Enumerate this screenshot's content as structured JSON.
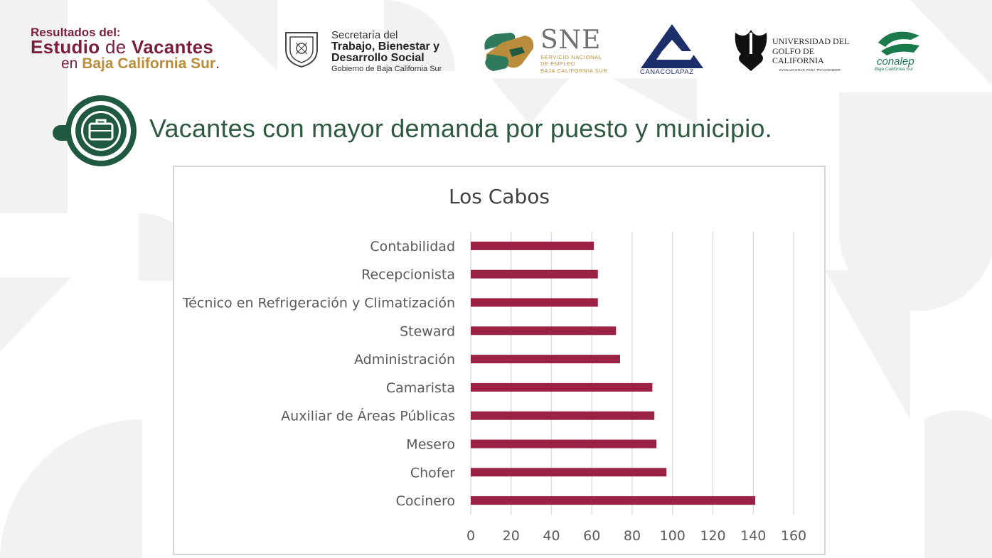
{
  "header": {
    "resultados": {
      "line1": "Resultados del:",
      "line2_a": "Estudio",
      "line2_b": "de",
      "line2_c": "Vacantes",
      "line3_a": "en",
      "line3_b": "Baja California Sur",
      "line3_c": "."
    },
    "stps": {
      "line1": "Secretaría del",
      "line2": "Trabajo, Bienestar y",
      "line3": "Desarrollo Social",
      "line4": "Gobierno de Baja California Sur"
    },
    "sne": {
      "title": "SNE",
      "line1": "SERVICIO NACIONAL",
      "line2": "DE EMPLEO",
      "line3": "BAJA CALIFORNIA SUR"
    },
    "canaco": "CANACOLAPAZ",
    "ugc": {
      "line1": "UNIVERSIDAD DEL",
      "line2": "GOLFO DE",
      "line3": "CALIFORNIA",
      "line4": "EVOLUCIONAR PARA TRASCENDER",
      "initials": "UGC"
    },
    "conalep": {
      "name": "conalep",
      "sub": "Baja California Sur"
    }
  },
  "heading": "Vacantes con mayor demanda por puesto y municipio.",
  "colors": {
    "bar": "#9b2245",
    "heading": "#2f5a41",
    "brand_green": "#1f5a40",
    "gold": "#b98d3b",
    "maroon": "#7a1f3d"
  },
  "chart_data": {
    "type": "bar",
    "orientation": "horizontal",
    "title": "Los Cabos",
    "categories": [
      "Contabilidad",
      "Recepcionista",
      "Técnico en Refrigeración y Climatización",
      "Steward",
      "Administración",
      "Camarista",
      "Auxiliar de Áreas Públicas",
      "Mesero",
      "Chofer",
      "Cocinero"
    ],
    "values": [
      61,
      63,
      63,
      72,
      74,
      90,
      91,
      92,
      97,
      141
    ],
    "xlim": [
      0,
      160
    ],
    "xticks": [
      0,
      20,
      40,
      60,
      80,
      100,
      120,
      140,
      160
    ],
    "grid": "vertical",
    "legend": "none",
    "xlabel": "",
    "ylabel": ""
  }
}
